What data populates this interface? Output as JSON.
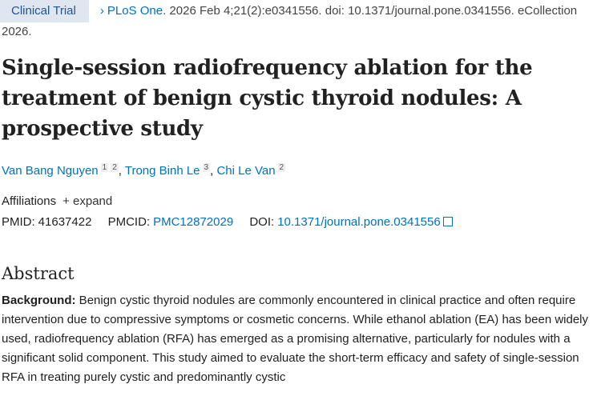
{
  "badge": "Clinical Trial",
  "citation": {
    "journal": "PLoS One.",
    "details": " 2026 Feb 4;21(2):e0341556. doi: 10.1371/journal.pone.0341556. eCollection 2026."
  },
  "title": "Single-session radiofrequency ablation for the treatment of benign cystic thyroid nodules: A prospective study",
  "authors": [
    {
      "name": "Van Bang Nguyen",
      "aff": [
        "1",
        "2"
      ]
    },
    {
      "name": "Trong Binh Le",
      "aff": [
        "3"
      ]
    },
    {
      "name": "Chi Le Van",
      "aff": [
        "2"
      ]
    }
  ],
  "affiliations": {
    "label": "Affiliations",
    "expand": "expand"
  },
  "ids": {
    "pmid_label": "PMID:",
    "pmid": "41637422",
    "pmcid_label": "PMCID:",
    "pmcid": "PMC12872029",
    "doi_label": "DOI:",
    "doi": "10.1371/journal.pone.0341556"
  },
  "abstract": {
    "heading": "Abstract",
    "background_label": "Background:",
    "background": " Benign cystic thyroid nodules are commonly encountered in clinical practice and often require intervention due to compressive symptoms or cosmetic concerns. While ethanol ablation (EA) has been widely used, radiofrequency ablation (RFA) has emerged as a promising alternative, particularly for nodules with a significant solid component. This study aimed to evaluate the short-term efficacy and safety of single-session RFA in treating purely cystic and predominantly cystic"
  }
}
